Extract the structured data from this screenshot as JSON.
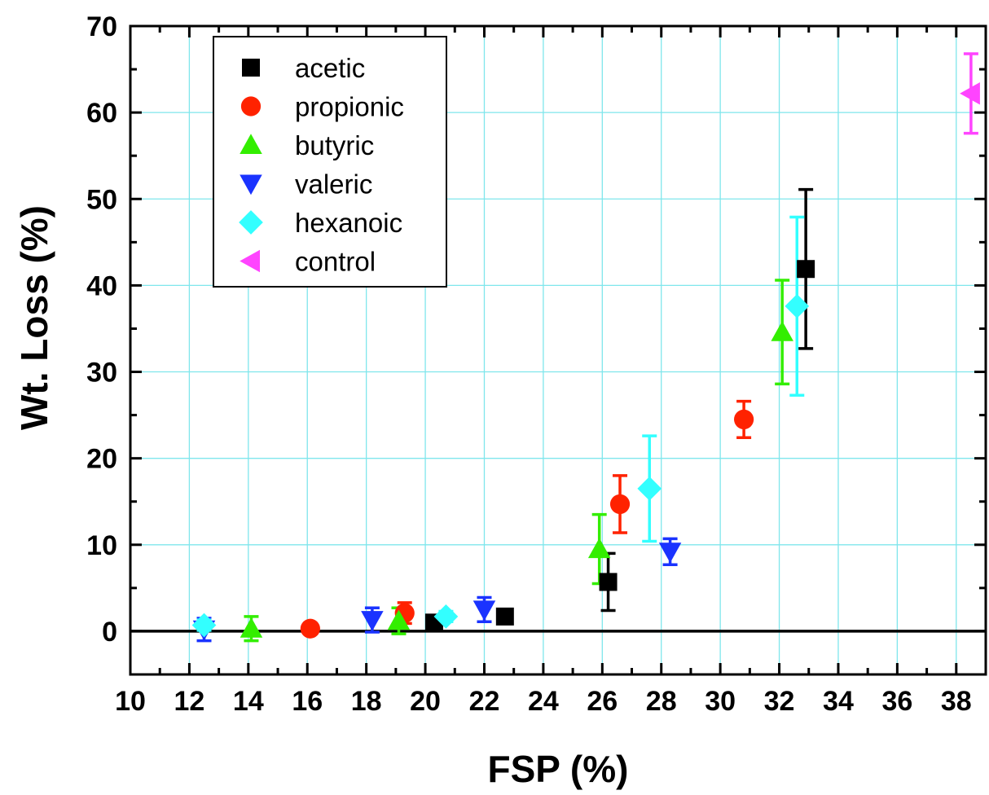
{
  "chart_data": {
    "type": "scatter",
    "title": "",
    "xlabel": "FSP (%)",
    "ylabel": "Wt. Loss (%)",
    "xlim": [
      10,
      39
    ],
    "ylim": [
      -5,
      70
    ],
    "x_ticks": [
      10,
      12,
      14,
      16,
      18,
      20,
      22,
      24,
      26,
      28,
      30,
      32,
      34,
      36,
      38
    ],
    "y_ticks": [
      0,
      10,
      20,
      30,
      40,
      50,
      60,
      70
    ],
    "grid": true,
    "grid_color": "#7fe6ec",
    "zero_line": true,
    "legend_position": "top-left",
    "series": [
      {
        "name": "acetic",
        "color": "#000000",
        "marker": "square",
        "points": [
          {
            "x": 20.3,
            "y": 1.0,
            "err": 0.5
          },
          {
            "x": 22.7,
            "y": 1.7,
            "err": 0.7
          },
          {
            "x": 26.2,
            "y": 5.7,
            "err": 3.3
          },
          {
            "x": 32.9,
            "y": 41.9,
            "err": 9.2
          }
        ]
      },
      {
        "name": "propionic",
        "color": "#ff2200",
        "marker": "circle",
        "points": [
          {
            "x": 16.1,
            "y": 0.3,
            "err": 0.3
          },
          {
            "x": 19.3,
            "y": 2.1,
            "err": 1.2
          },
          {
            "x": 26.6,
            "y": 14.7,
            "err": 3.3
          },
          {
            "x": 30.8,
            "y": 24.5,
            "err": 2.1
          }
        ]
      },
      {
        "name": "butyric",
        "color": "#33ee00",
        "marker": "triangle-up",
        "points": [
          {
            "x": 14.1,
            "y": 0.3,
            "err": 1.4
          },
          {
            "x": 19.1,
            "y": 1.2,
            "err": 1.5
          },
          {
            "x": 25.9,
            "y": 9.5,
            "err": 4.0
          },
          {
            "x": 32.1,
            "y": 34.6,
            "err": 6.0
          }
        ]
      },
      {
        "name": "valeric",
        "color": "#1a33ff",
        "marker": "triangle-down",
        "points": [
          {
            "x": 12.5,
            "y": 0.2,
            "err": 1.3
          },
          {
            "x": 18.2,
            "y": 1.3,
            "err": 1.4
          },
          {
            "x": 22.0,
            "y": 2.5,
            "err": 1.4
          },
          {
            "x": 28.3,
            "y": 9.2,
            "err": 1.5
          }
        ]
      },
      {
        "name": "hexanoic",
        "color": "#33ffff",
        "marker": "diamond",
        "points": [
          {
            "x": 12.5,
            "y": 0.7,
            "err": 0.6
          },
          {
            "x": 20.7,
            "y": 1.7,
            "err": 0.6
          },
          {
            "x": 27.6,
            "y": 16.5,
            "err": 6.1
          },
          {
            "x": 32.6,
            "y": 37.6,
            "err": 10.3
          }
        ]
      },
      {
        "name": "control",
        "color": "#ff44ff",
        "marker": "triangle-left",
        "points": [
          {
            "x": 38.5,
            "y": 62.2,
            "err": 4.6
          }
        ]
      }
    ]
  }
}
